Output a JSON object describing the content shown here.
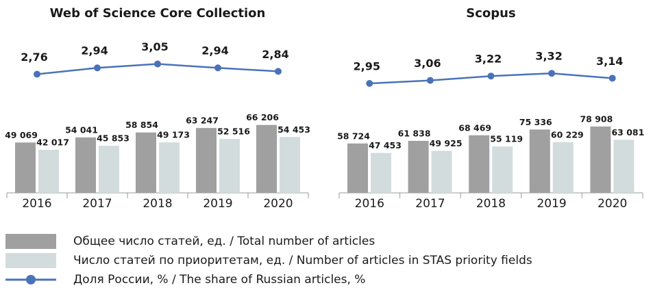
{
  "chart_data": [
    {
      "type": "bar-line",
      "title": "Web of Science Core Collection",
      "categories": [
        "2016",
        "2017",
        "2018",
        "2019",
        "2020"
      ],
      "ylim": [
        0,
        100000
      ],
      "y2lim": [
        2.15,
        3.7
      ],
      "series": [
        {
          "color": "#a0a0a0",
          "values": [
            49069,
            54041,
            58854,
            63247,
            66206
          ],
          "value_labels": [
            "49 069",
            "54 041",
            "58 854",
            "63 247",
            "66 206"
          ]
        },
        {
          "color": "#d2dcdd",
          "values": [
            42017,
            45853,
            49173,
            52516,
            54453
          ],
          "value_labels": [
            "42 017",
            "45 853",
            "49 173",
            "52 516",
            "54 453"
          ]
        },
        {
          "color": "#4a72b8",
          "axis": "y2",
          "values": [
            2.76,
            2.94,
            3.05,
            2.94,
            2.84
          ],
          "value_labels": [
            "2,76",
            "2,94",
            "3,05",
            "2,94",
            "2,84"
          ]
        }
      ]
    },
    {
      "type": "bar-line",
      "title": "Scopus",
      "categories": [
        "2016",
        "2017",
        "2018",
        "2019",
        "2020"
      ],
      "ylim": [
        0,
        122000
      ],
      "y2lim": [
        2.5,
        4.5
      ],
      "series": [
        {
          "color": "#a0a0a0",
          "values": [
            58724,
            61838,
            68469,
            75336,
            78908
          ],
          "value_labels": [
            "58 724",
            "61 838",
            "68 469",
            "75 336",
            "78 908"
          ]
        },
        {
          "color": "#d2dcdd",
          "values": [
            47453,
            49925,
            55119,
            60229,
            63081
          ],
          "value_labels": [
            "47 453",
            "49 925",
            "55 119",
            "60 229",
            "63 081"
          ]
        },
        {
          "color": "#4a72b8",
          "axis": "y2",
          "values": [
            2.95,
            3.06,
            3.22,
            3.32,
            3.14
          ],
          "value_labels": [
            "2,95",
            "3,06",
            "3,22",
            "3,32",
            "3,14"
          ]
        }
      ]
    }
  ],
  "legend": [
    {
      "name": "Общее число статей, ед. / Total number of articles",
      "color": "#a0a0a0",
      "kind": "bar"
    },
    {
      "name": "Число статей по приоритетам, ед. / Number of articles in STAS priority fields",
      "color": "#d2dcdd",
      "kind": "bar"
    },
    {
      "name": "Доля России, % / The share of Russian articles, %",
      "color": "#4a72b8",
      "kind": "line"
    }
  ]
}
